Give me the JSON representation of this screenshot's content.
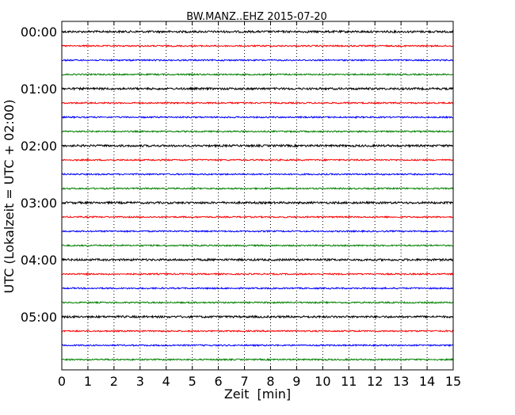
{
  "chart_data": {
    "type": "line",
    "title": "BW.MANZ..EHZ 2015-07-20",
    "xlabel": "Zeit  [min]",
    "ylabel": "UTC (Lokalzeit = UTC + 02:00)",
    "xlim": [
      0,
      15
    ],
    "x_ticks": [
      "0",
      "1",
      "2",
      "3",
      "4",
      "5",
      "6",
      "7",
      "8",
      "9",
      "10",
      "11",
      "12",
      "13",
      "14",
      "15"
    ],
    "y_ticks": [
      "00:00",
      "01:00",
      "02:00",
      "03:00",
      "04:00",
      "05:00"
    ],
    "grid": {
      "x": true,
      "y": false,
      "style": "dotted"
    },
    "series_colors": [
      "#000000",
      "#ff0000",
      "#0000ff",
      "#008000"
    ],
    "traces": [
      {
        "start": "00:00",
        "color": "#000000"
      },
      {
        "start": "00:15",
        "color": "#ff0000"
      },
      {
        "start": "00:30",
        "color": "#0000ff"
      },
      {
        "start": "00:45",
        "color": "#008000"
      },
      {
        "start": "01:00",
        "color": "#000000"
      },
      {
        "start": "01:15",
        "color": "#ff0000"
      },
      {
        "start": "01:30",
        "color": "#0000ff"
      },
      {
        "start": "01:45",
        "color": "#008000"
      },
      {
        "start": "02:00",
        "color": "#000000"
      },
      {
        "start": "02:15",
        "color": "#ff0000"
      },
      {
        "start": "02:30",
        "color": "#0000ff"
      },
      {
        "start": "02:45",
        "color": "#008000"
      },
      {
        "start": "03:00",
        "color": "#000000"
      },
      {
        "start": "03:15",
        "color": "#ff0000"
      },
      {
        "start": "03:30",
        "color": "#0000ff"
      },
      {
        "start": "03:45",
        "color": "#008000"
      },
      {
        "start": "04:00",
        "color": "#000000"
      },
      {
        "start": "04:15",
        "color": "#ff0000"
      },
      {
        "start": "04:30",
        "color": "#0000ff"
      },
      {
        "start": "04:45",
        "color": "#008000"
      },
      {
        "start": "05:00",
        "color": "#000000"
      },
      {
        "start": "05:15",
        "color": "#ff0000"
      },
      {
        "start": "05:30",
        "color": "#0000ff"
      },
      {
        "start": "05:45",
        "color": "#008000"
      }
    ]
  }
}
